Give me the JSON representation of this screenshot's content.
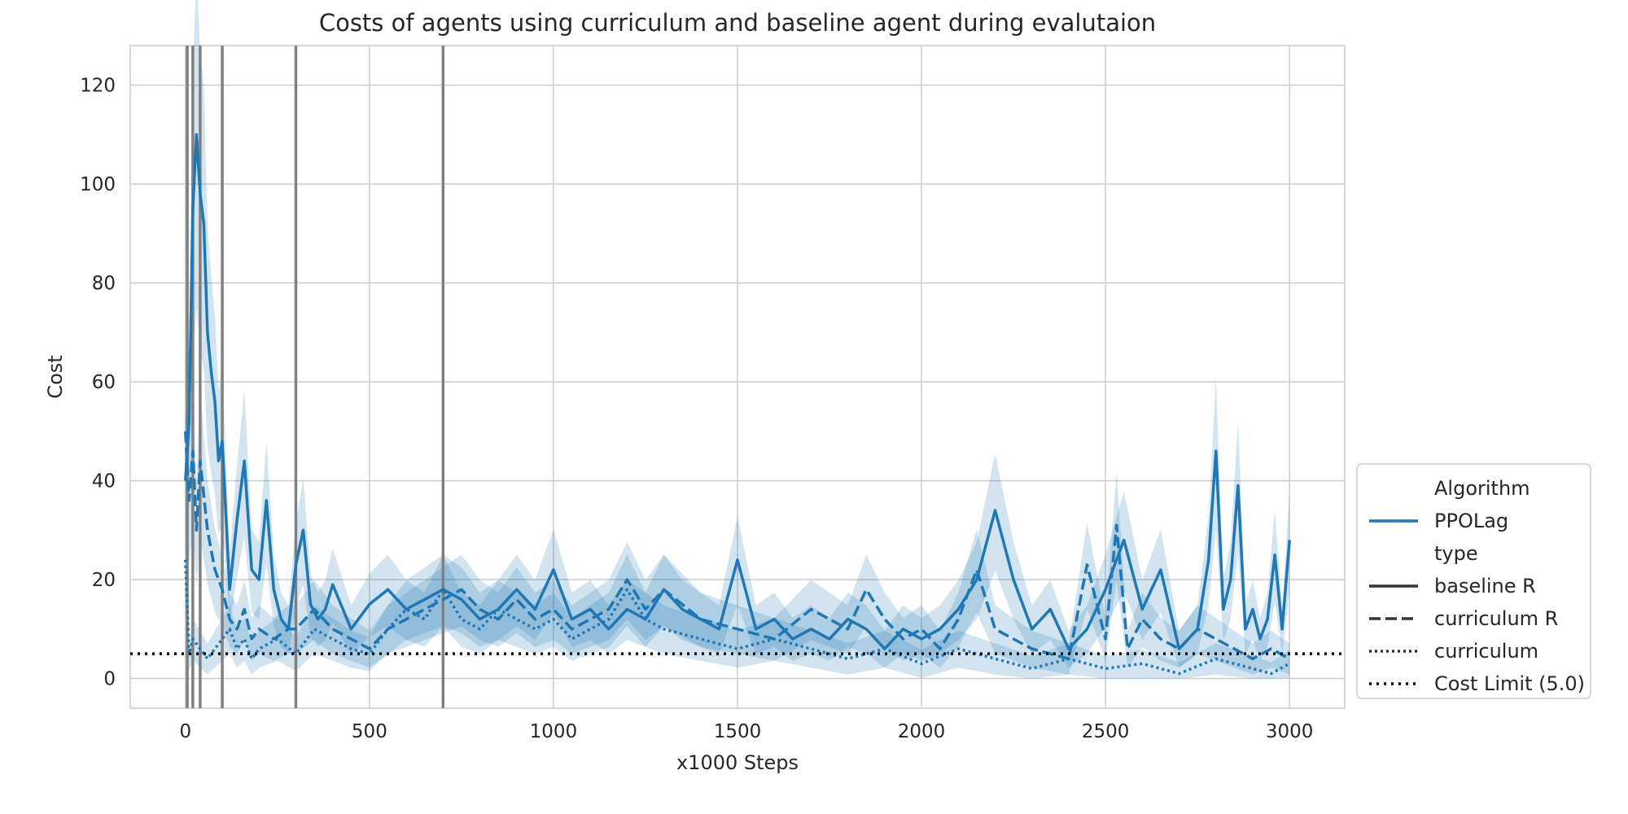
{
  "chart_data": {
    "type": "line",
    "title": "Costs of agents using curriculum and baseline agent during evalutaion",
    "xlabel": "x1000 Steps",
    "ylabel": "Cost",
    "xlim": [
      -150,
      3150
    ],
    "ylim": [
      -6,
      128
    ],
    "x_ticks": [
      0,
      500,
      1000,
      1500,
      2000,
      2500,
      3000
    ],
    "y_ticks": [
      0,
      20,
      40,
      60,
      80,
      100,
      120
    ],
    "grid": true,
    "colors": {
      "series": "#1f77b4",
      "band": "#1f77b4",
      "vlines": "#808080",
      "limit": "#000000",
      "grid": "#cccccc"
    },
    "vlines": [
      5,
      20,
      40,
      100,
      300,
      700
    ],
    "cost_limit": {
      "value": 5.0,
      "label": "Cost Limit (5.0)"
    },
    "legend": {
      "placement": "lower-right outside",
      "entries": [
        {
          "text": "Algorithm",
          "style": "header"
        },
        {
          "text": "PPOLag",
          "style": "color"
        },
        {
          "text": "type",
          "style": "header"
        },
        {
          "text": "baseline R",
          "style": "solid"
        },
        {
          "text": "curriculum R",
          "style": "dashed"
        },
        {
          "text": "curriculum",
          "style": "dotted"
        },
        {
          "text": "Cost Limit (5.0)",
          "style": "limit"
        }
      ]
    },
    "series": [
      {
        "name": "baseline R",
        "style": "solid",
        "x": [
          0,
          10,
          20,
          30,
          40,
          50,
          60,
          70,
          80,
          90,
          100,
          120,
          140,
          160,
          180,
          200,
          220,
          240,
          260,
          280,
          300,
          320,
          340,
          360,
          380,
          400,
          450,
          500,
          550,
          600,
          650,
          700,
          750,
          800,
          850,
          900,
          950,
          1000,
          1050,
          1100,
          1150,
          1200,
          1250,
          1300,
          1350,
          1400,
          1450,
          1500,
          1550,
          1600,
          1650,
          1700,
          1750,
          1800,
          1850,
          1900,
          1950,
          2000,
          2050,
          2100,
          2150,
          2200,
          2250,
          2300,
          2350,
          2400,
          2450,
          2500,
          2550,
          2600,
          2650,
          2700,
          2750,
          2780,
          2800,
          2820,
          2840,
          2860,
          2880,
          2900,
          2920,
          2940,
          2960,
          2980,
          3000
        ],
        "y": [
          40,
          52,
          95,
          110,
          98,
          92,
          70,
          62,
          56,
          44,
          48,
          18,
          32,
          44,
          22,
          20,
          36,
          18,
          12,
          10,
          23,
          30,
          15,
          12,
          14,
          19,
          10,
          15,
          18,
          14,
          16,
          18,
          16,
          12,
          14,
          18,
          14,
          22,
          12,
          14,
          10,
          14,
          12,
          18,
          14,
          12,
          10,
          24,
          10,
          12,
          8,
          10,
          8,
          12,
          10,
          6,
          10,
          8,
          10,
          14,
          20,
          34,
          20,
          10,
          14,
          6,
          10,
          18,
          28,
          14,
          22,
          6,
          10,
          24,
          46,
          14,
          20,
          39,
          10,
          14,
          8,
          12,
          25,
          10,
          28
        ]
      },
      {
        "name": "curriculum R",
        "style": "dashed",
        "x": [
          0,
          10,
          20,
          30,
          40,
          60,
          80,
          100,
          120,
          140,
          160,
          180,
          200,
          240,
          280,
          300,
          350,
          400,
          450,
          500,
          550,
          600,
          650,
          700,
          750,
          800,
          850,
          900,
          950,
          1000,
          1050,
          1100,
          1150,
          1200,
          1250,
          1300,
          1400,
          1500,
          1600,
          1700,
          1800,
          1850,
          1900,
          1950,
          2000,
          2050,
          2100,
          2150,
          2200,
          2250,
          2300,
          2400,
          2450,
          2500,
          2530,
          2560,
          2600,
          2650,
          2700,
          2750,
          2800,
          2850,
          2900,
          2950,
          3000
        ],
        "y": [
          50,
          36,
          46,
          30,
          44,
          30,
          22,
          18,
          12,
          10,
          14,
          8,
          10,
          8,
          10,
          10,
          14,
          10,
          8,
          6,
          10,
          12,
          14,
          16,
          18,
          14,
          12,
          16,
          12,
          14,
          10,
          12,
          14,
          20,
          14,
          18,
          12,
          10,
          8,
          14,
          10,
          18,
          12,
          8,
          10,
          6,
          12,
          22,
          10,
          8,
          6,
          4,
          23,
          8,
          31,
          6,
          12,
          8,
          6,
          10,
          8,
          6,
          4,
          6,
          4
        ]
      },
      {
        "name": "curriculum",
        "style": "dotted",
        "x": [
          0,
          10,
          20,
          40,
          60,
          80,
          100,
          120,
          140,
          160,
          180,
          200,
          250,
          300,
          350,
          400,
          450,
          500,
          550,
          600,
          650,
          700,
          750,
          800,
          850,
          900,
          950,
          1000,
          1050,
          1100,
          1150,
          1200,
          1250,
          1300,
          1400,
          1500,
          1600,
          1700,
          1800,
          1900,
          2000,
          2100,
          2200,
          2300,
          2400,
          2500,
          2600,
          2700,
          2800,
          2900,
          2950,
          3000
        ],
        "y": [
          24,
          5,
          8,
          6,
          4,
          6,
          8,
          10,
          6,
          8,
          4,
          6,
          8,
          5,
          10,
          8,
          6,
          5,
          10,
          14,
          12,
          18,
          12,
          10,
          14,
          12,
          10,
          12,
          8,
          10,
          12,
          18,
          12,
          10,
          8,
          6,
          8,
          6,
          4,
          6,
          3,
          6,
          4,
          2,
          4,
          2,
          3,
          1,
          4,
          2,
          1,
          3
        ]
      }
    ]
  }
}
